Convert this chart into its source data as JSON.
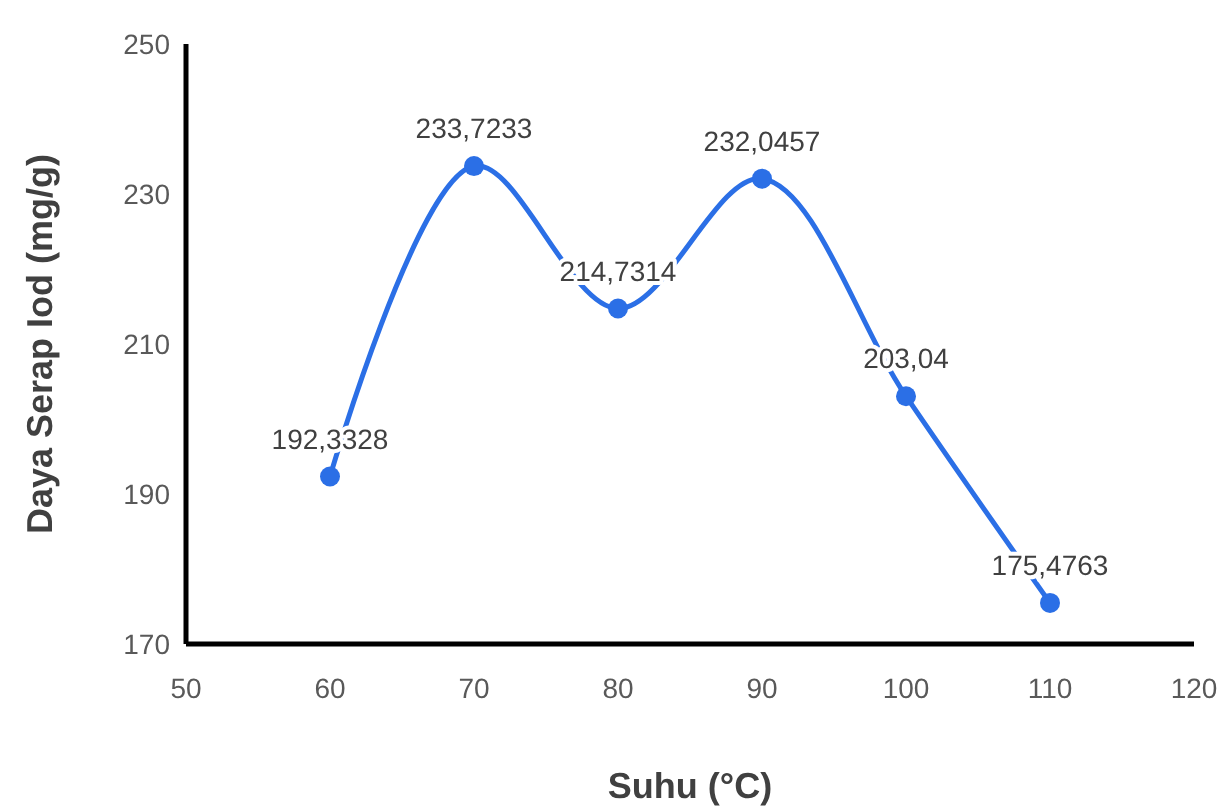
{
  "chart_data": {
    "type": "line",
    "xlabel": "Suhu (°C)",
    "ylabel": "Daya Serap Iod (mg/g)",
    "x": [
      60,
      70,
      80,
      90,
      100,
      110
    ],
    "series": [
      {
        "color": "#2b6fe6",
        "values": [
          192.3328,
          233.7233,
          214.7314,
          232.0457,
          203.04,
          175.4763
        ],
        "value_labels": [
          "192,3328",
          "233,7233",
          "214,7314",
          "232,0457",
          "203,04",
          "175,4763"
        ]
      }
    ],
    "xlim": [
      50,
      120
    ],
    "xticks": [
      50,
      60,
      70,
      80,
      90,
      100,
      110,
      120
    ],
    "ylim": [
      170,
      250
    ],
    "yticks": [
      170,
      190,
      210,
      230,
      250
    ],
    "grid": false,
    "marker": "circle",
    "line_style": "solid"
  }
}
